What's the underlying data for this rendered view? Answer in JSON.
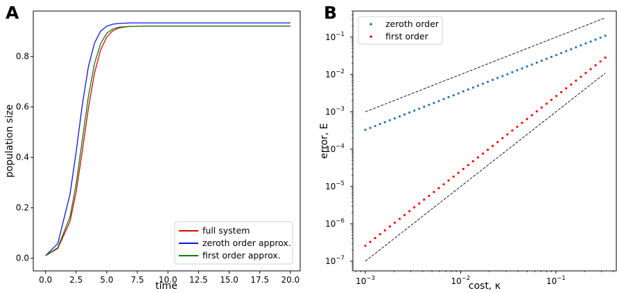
{
  "panels": {
    "a_label": "A",
    "b_label": "B"
  },
  "colors": {
    "full_system": "#e00000",
    "zeroth": "#1010d8",
    "first": "#0a7a0a",
    "zeroth_dots": "#1f77b4",
    "first_dots": "#ff0000",
    "guide": "#000000"
  },
  "chart_data": [
    {
      "type": "line",
      "xlabel": "time",
      "ylabel": "population size",
      "xlim": [
        -1,
        20.8
      ],
      "ylim": [
        -0.05,
        0.98
      ],
      "xticks": [
        0.0,
        2.5,
        5.0,
        7.5,
        10.0,
        12.5,
        15.0,
        17.5,
        20.0
      ],
      "xtick_labels": [
        "0.0",
        "2.5",
        "5.0",
        "7.5",
        "10.0",
        "12.5",
        "15.0",
        "17.5",
        "20.0"
      ],
      "yticks": [
        0.0,
        0.2,
        0.4,
        0.6,
        0.8
      ],
      "ytick_labels": [
        "0.0",
        "0.2",
        "0.4",
        "0.6",
        "0.8"
      ],
      "legend_position": "lower-right",
      "grid": false,
      "series": [
        {
          "name": "full system",
          "color": "#e00000",
          "x": [
            0,
            1,
            2,
            2.5,
            3,
            3.5,
            4,
            4.5,
            5,
            5.5,
            6,
            6.5,
            7,
            8,
            9,
            10,
            12,
            15,
            20
          ],
          "y": [
            0.01,
            0.039,
            0.146,
            0.262,
            0.423,
            0.594,
            0.734,
            0.826,
            0.877,
            0.902,
            0.913,
            0.917,
            0.919,
            0.92,
            0.92,
            0.92,
            0.92,
            0.92,
            0.92
          ]
        },
        {
          "name": "zeroth order approx.",
          "color": "#1010d8",
          "x": [
            0,
            1,
            2,
            2.5,
            3,
            3.5,
            4,
            4.5,
            5,
            5.5,
            6,
            6.5,
            7,
            8,
            9,
            10,
            12,
            15,
            20
          ],
          "y": [
            0.01,
            0.058,
            0.254,
            0.421,
            0.607,
            0.759,
            0.853,
            0.9,
            0.92,
            0.928,
            0.931,
            0.932,
            0.933,
            0.933,
            0.933,
            0.933,
            0.933,
            0.933,
            0.933
          ]
        },
        {
          "name": "first order approx.",
          "color": "#0a7a0a",
          "x": [
            0,
            1,
            2,
            2.5,
            3,
            3.5,
            4,
            4.5,
            5,
            5.5,
            6,
            6.5,
            7,
            8,
            9,
            10,
            12,
            15,
            20
          ],
          "y": [
            0.01,
            0.042,
            0.164,
            0.294,
            0.468,
            0.641,
            0.772,
            0.851,
            0.892,
            0.909,
            0.916,
            0.918,
            0.919,
            0.92,
            0.92,
            0.92,
            0.92,
            0.92,
            0.92
          ]
        }
      ]
    },
    {
      "type": "scatter",
      "xlabel": "cost, κ",
      "ylabel": "error, E",
      "xscale": "log",
      "yscale": "log",
      "xlim": [
        0.00074,
        0.43
      ],
      "ylim": [
        5.5e-08,
        0.5
      ],
      "xtick_labels": [
        {
          "base": "10",
          "exp": "−3",
          "value": 0.001
        },
        {
          "base": "10",
          "exp": "−2",
          "value": 0.01
        },
        {
          "base": "10",
          "exp": "−1",
          "value": 0.1
        }
      ],
      "ytick_labels": [
        {
          "base": "10",
          "exp": "−7",
          "value": 1e-07
        },
        {
          "base": "10",
          "exp": "−6",
          "value": 1e-06
        },
        {
          "base": "10",
          "exp": "−5",
          "value": 1e-05
        },
        {
          "base": "10",
          "exp": "−4",
          "value": 0.0001
        },
        {
          "base": "10",
          "exp": "−3",
          "value": 0.001
        },
        {
          "base": "10",
          "exp": "−2",
          "value": 0.01
        },
        {
          "base": "10",
          "exp": "−1",
          "value": 0.1
        }
      ],
      "legend_position": "upper-left",
      "grid": false,
      "series": [
        {
          "name": "zeroth order",
          "color": "#1f77b4",
          "marker": "dot",
          "x_range": [
            0.001,
            0.33
          ],
          "n_points": 50,
          "slope": 1,
          "y_at_xmin": 0.00033
        },
        {
          "name": "first order",
          "color": "#ff0000",
          "marker": "dot",
          "x_range": [
            0.001,
            0.33
          ],
          "n_points": 50,
          "slope": 2,
          "y_at_xmin": 2.6e-07
        }
      ],
      "reference_lines": [
        {
          "style": "dashed",
          "color": "#000000",
          "x": [
            0.001,
            0.33
          ],
          "y": [
            0.001,
            0.33
          ]
        },
        {
          "style": "dashed",
          "color": "#000000",
          "x": [
            0.001,
            0.33
          ],
          "y": [
            1e-07,
            0.0109
          ]
        }
      ]
    }
  ],
  "legend_a": [
    {
      "label": "full system",
      "color": "#e00000"
    },
    {
      "label": "zeroth order approx.",
      "color": "#1010d8"
    },
    {
      "label": "first order approx.",
      "color": "#0a7a0a"
    }
  ],
  "legend_b": [
    {
      "label": "zeroth order",
      "color": "#1f77b4"
    },
    {
      "label": "first order",
      "color": "#ff0000"
    }
  ]
}
